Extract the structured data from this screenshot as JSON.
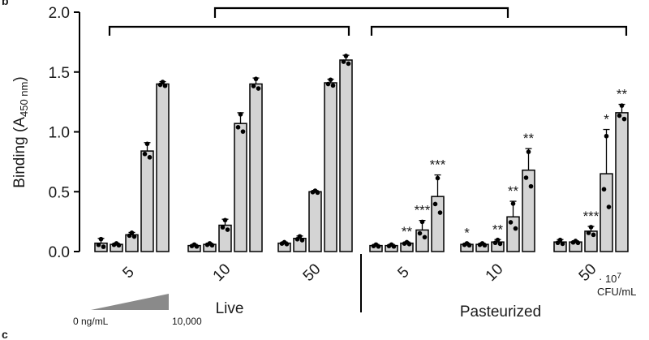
{
  "panel_labels": {
    "top": "b",
    "bottom": "c"
  },
  "colors": {
    "bar_fill": "#d4d4d4",
    "stroke": "#000000",
    "wedge": "#8a8a8a"
  },
  "chart_data": {
    "type": "bar",
    "ylabel_main": "Binding (A",
    "ylabel_sub": "450 nm",
    "ylabel_close": ")",
    "ylim": [
      0,
      2.0
    ],
    "yticks": [
      "0.0",
      "0.5",
      "1.0",
      "1.5",
      "2.0"
    ],
    "ytick_values": [
      0,
      0.5,
      1.0,
      1.5,
      2.0
    ],
    "gradient_labels": [
      "0 ng/mL",
      "10,000"
    ],
    "concentration_unit": {
      "multiplier": "· 10",
      "exponent": "7",
      "unit": "CFU/mL"
    },
    "conditions": [
      {
        "name": "Live",
        "groups": [
          {
            "dose": "5",
            "bars": [
              0.07,
              0.06,
              0.14,
              0.84,
              1.4
            ],
            "errors": [
              0.04,
              0.01,
              0.02,
              0.07,
              0.02
            ],
            "stars": [
              "",
              "",
              "",
              "",
              ""
            ]
          },
          {
            "dose": "10",
            "bars": [
              0.05,
              0.06,
              0.22,
              1.07,
              1.4
            ],
            "errors": [
              0.01,
              0.01,
              0.05,
              0.09,
              0.05
            ],
            "stars": [
              "",
              "",
              "",
              "",
              ""
            ]
          },
          {
            "dose": "50",
            "bars": [
              0.07,
              0.11,
              0.5,
              1.41,
              1.6
            ],
            "errors": [
              0.01,
              0.02,
              0.01,
              0.03,
              0.04
            ],
            "stars": [
              "",
              "",
              "",
              "",
              ""
            ]
          }
        ]
      },
      {
        "name": "Pasteurized",
        "groups": [
          {
            "dose": "5",
            "bars": [
              0.05,
              0.05,
              0.07,
              0.18,
              0.46
            ],
            "errors": [
              0.01,
              0.01,
              0.01,
              0.08,
              0.18
            ],
            "stars": [
              "",
              "",
              "**",
              "***",
              "***"
            ]
          },
          {
            "dose": "10",
            "bars": [
              0.06,
              0.06,
              0.08,
              0.29,
              0.68
            ],
            "errors": [
              0.01,
              0.01,
              0.02,
              0.13,
              0.18
            ],
            "stars": [
              "*",
              "",
              "**",
              "**",
              "**"
            ]
          },
          {
            "dose": "50",
            "bars": [
              0.08,
              0.08,
              0.17,
              0.65,
              1.16
            ],
            "errors": [
              0.02,
              0.01,
              0.04,
              0.37,
              0.07
            ],
            "stars": [
              "",
              "",
              "***",
              "*",
              "**"
            ]
          }
        ]
      }
    ]
  }
}
